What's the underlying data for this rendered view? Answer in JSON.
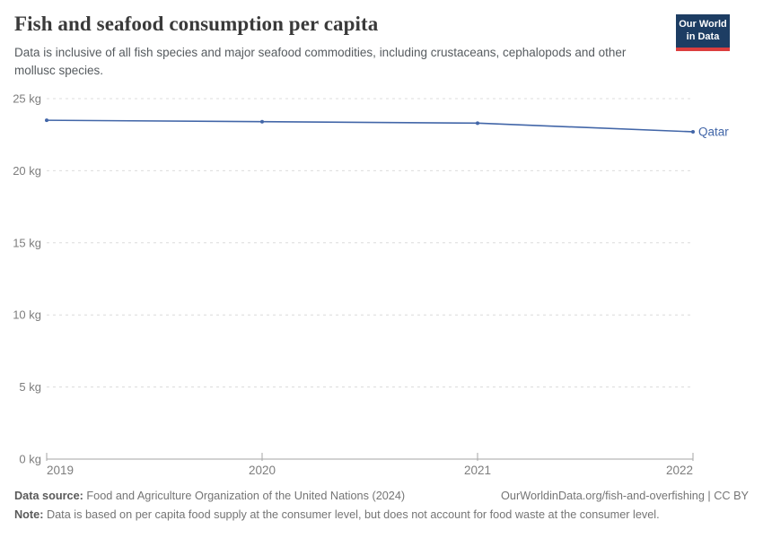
{
  "header": {
    "title": "Fish and seafood consumption per capita",
    "subtitle": "Data is inclusive of all fish species and major seafood commodities, including crustaceans, cephalopods and other mollusc species.",
    "logo": {
      "line1": "Our World",
      "line2": "in Data",
      "bg_color": "#1d3d63",
      "accent_color": "#dc3e3e"
    }
  },
  "chart_data": {
    "type": "line",
    "title": "Fish and seafood consumption per capita",
    "unit": "kg",
    "x": [
      2019,
      2020,
      2021,
      2022
    ],
    "xticks": [
      "2019",
      "2020",
      "2021",
      "2022"
    ],
    "series": [
      {
        "name": "Qatar",
        "values": [
          23.5,
          23.4,
          23.3,
          22.7
        ],
        "color": "#4266a8"
      }
    ],
    "ylim": [
      0,
      25
    ],
    "yticks": [
      {
        "value": 0,
        "label": "0 kg"
      },
      {
        "value": 5,
        "label": "5 kg"
      },
      {
        "value": 10,
        "label": "10 kg"
      },
      {
        "value": 15,
        "label": "15 kg"
      },
      {
        "value": 20,
        "label": "20 kg"
      },
      {
        "value": 25,
        "label": "25 kg"
      }
    ],
    "grid": "horizontal-dashed",
    "legend_position": "end-of-line-label",
    "grid_color": "#dcdcdc",
    "axis_color": "#a5a5a5"
  },
  "footer": {
    "source_label": "Data source:",
    "source_text": " Food and Agriculture Organization of the United Nations (2024)",
    "link": "OurWorldinData.org/fish-and-overfishing | CC BY",
    "note_label": "Note:",
    "note_text": " Data is based on per capita food supply at the consumer level, but does not account for food waste at the consumer level."
  }
}
